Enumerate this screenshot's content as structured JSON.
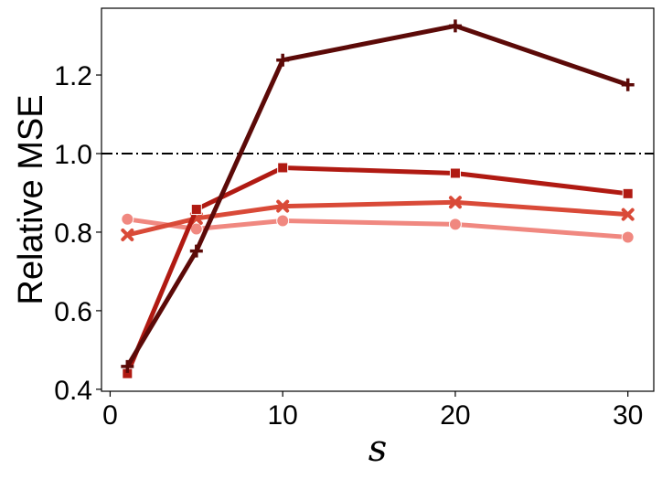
{
  "chart_data": {
    "type": "line",
    "title": "",
    "xlabel": "s",
    "ylabel": "Relative MSE",
    "xlim": [
      -0.5,
      31.5
    ],
    "ylim": [
      0.395,
      1.37
    ],
    "xticks": [
      "0",
      "10",
      "20",
      "30"
    ],
    "yticks": [
      "0.4",
      "0.6",
      "0.8",
      "1.0",
      "1.2"
    ],
    "grid": false,
    "legend": "none",
    "reference_line": {
      "y": 1.0,
      "style": "dash-dot",
      "color": "#000000"
    },
    "x": [
      1,
      5,
      10,
      20,
      30
    ],
    "series": [
      {
        "marker": "circle",
        "color": "#f08880",
        "values": [
          0.833,
          0.808,
          0.829,
          0.82,
          0.787
        ]
      },
      {
        "marker": "x",
        "color": "#d94a38",
        "values": [
          0.793,
          0.835,
          0.866,
          0.876,
          0.845
        ]
      },
      {
        "marker": "square",
        "color": "#b01a12",
        "values": [
          0.44,
          0.858,
          0.964,
          0.95,
          0.898
        ]
      },
      {
        "marker": "plus",
        "color": "#5c0a08",
        "values": [
          0.458,
          0.752,
          1.238,
          1.325,
          1.175
        ]
      }
    ]
  }
}
